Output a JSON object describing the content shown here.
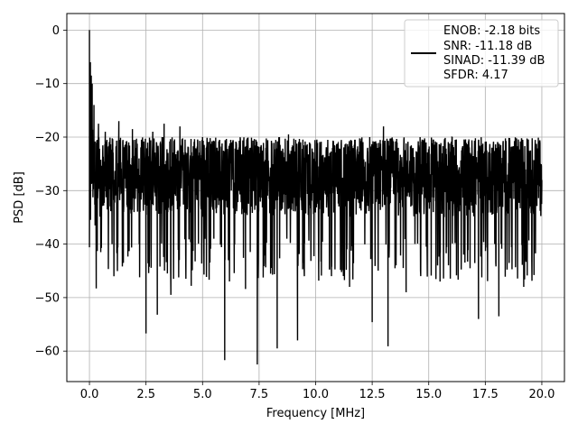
{
  "chart_data": {
    "type": "line",
    "xlabel": "Frequency [MHz]",
    "ylabel": "PSD [dB]",
    "xlim": [
      -1.0,
      21.0
    ],
    "ylim": [
      -65.7,
      3.1
    ],
    "xticks": [
      0.0,
      2.5,
      5.0,
      7.5,
      10.0,
      12.5,
      15.0,
      17.5,
      20.0
    ],
    "xtick_labels": [
      "0.0",
      "2.5",
      "5.0",
      "7.5",
      "10.0",
      "12.5",
      "15.0",
      "17.5",
      "20.0"
    ],
    "yticks": [
      0,
      -10,
      -20,
      -30,
      -40,
      -50,
      -60
    ],
    "ytick_labels": [
      "0",
      "−10",
      "−20",
      "−30",
      "−40",
      "−50",
      "−60"
    ],
    "grid": true,
    "legend_position": "top-right",
    "series": [
      {
        "name": "ENOB: -2.18 bits",
        "legend_lines": [
          "ENOB: -2.18 bits",
          "SNR: -11.18 dB",
          "SINAD: -11.39 dB",
          "SFDR: 4.17"
        ],
        "color": "#000000",
        "noise_floor_range_db": [
          -20,
          -35
        ],
        "points": [
          [
            0.0,
            0.0
          ],
          [
            0.02,
            -24.5
          ],
          [
            0.04,
            -6.0
          ],
          [
            0.06,
            -12.5
          ],
          [
            0.08,
            -8.5
          ],
          [
            0.1,
            -18.0
          ],
          [
            0.12,
            -10.0
          ],
          [
            0.15,
            -22.0
          ],
          [
            0.2,
            -14.0
          ],
          [
            0.25,
            -36.5
          ],
          [
            0.3,
            -48.3
          ],
          [
            0.35,
            -20.5
          ],
          [
            0.4,
            -17.5
          ],
          [
            0.5,
            -41.5
          ],
          [
            0.7,
            -19.0
          ],
          [
            1.0,
            -40.0
          ],
          [
            1.3,
            -17.0
          ],
          [
            1.5,
            -43.5
          ],
          [
            1.9,
            -18.5
          ],
          [
            2.2,
            -40.0
          ],
          [
            2.5,
            -56.7
          ],
          [
            2.8,
            -19.0
          ],
          [
            3.0,
            -53.2
          ],
          [
            3.3,
            -17.5
          ],
          [
            3.6,
            -49.5
          ],
          [
            4.0,
            -18.0
          ],
          [
            4.5,
            -47.8
          ],
          [
            5.0,
            -20.0
          ],
          [
            5.5,
            -39.0
          ],
          [
            5.98,
            -61.7
          ],
          [
            6.3,
            -21.0
          ],
          [
            6.9,
            -48.4
          ],
          [
            7.42,
            -62.5
          ],
          [
            7.8,
            -22.0
          ],
          [
            8.3,
            -59.5
          ],
          [
            8.8,
            -19.5
          ],
          [
            9.2,
            -58.0
          ],
          [
            9.5,
            -46.0
          ],
          [
            10.2,
            -22.5
          ],
          [
            10.7,
            -46.0
          ],
          [
            11.0,
            -21.5
          ],
          [
            11.5,
            -48.0
          ],
          [
            12.3,
            -22.0
          ],
          [
            12.5,
            -54.6
          ],
          [
            13.0,
            -18.0
          ],
          [
            13.2,
            -59.1
          ],
          [
            13.6,
            -21.0
          ],
          [
            14.0,
            -49.0
          ],
          [
            14.7,
            -22.0
          ],
          [
            15.5,
            -47.0
          ],
          [
            16.2,
            -21.0
          ],
          [
            17.2,
            -54.0
          ],
          [
            17.8,
            -22.0
          ],
          [
            18.1,
            -53.5
          ],
          [
            18.7,
            -22.0
          ],
          [
            19.2,
            -48.0
          ],
          [
            19.5,
            -22.5
          ],
          [
            20.0,
            -29.0
          ]
        ]
      }
    ]
  }
}
